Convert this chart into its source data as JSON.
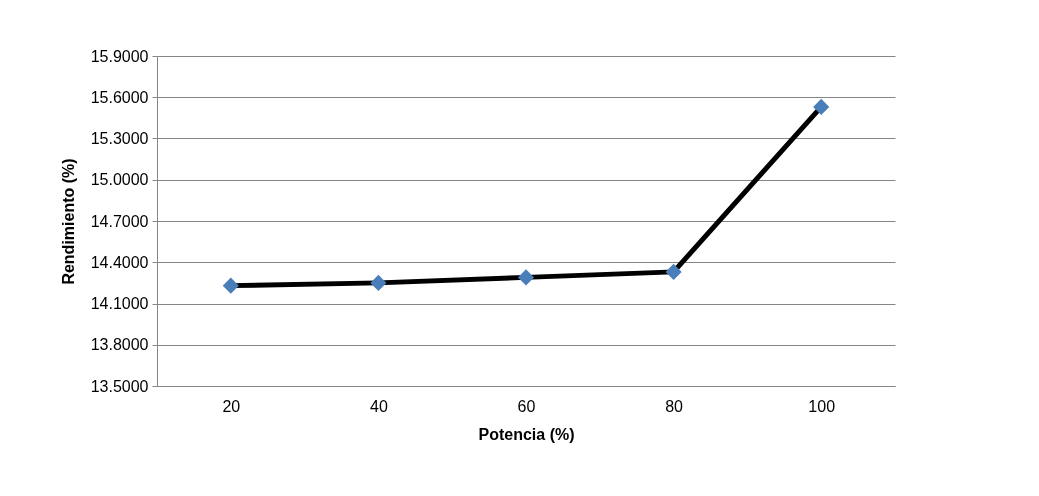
{
  "chart_data": {
    "type": "line",
    "xlabel": "Potencia (%)",
    "ylabel": "Rendimiento (%)",
    "categories": [
      "20",
      "40",
      "60",
      "80",
      "100"
    ],
    "series": [
      {
        "color": "#000000",
        "colors": [
          "#4a7ebb",
          "#4a7ebb",
          "#4a7ebb",
          "#4a7ebb",
          "#4a7ebb"
        ],
        "values": [
          14.23,
          14.25,
          14.29,
          14.33,
          15.53
        ]
      }
    ],
    "ylim": [
      13.5,
      15.9
    ],
    "yticks": [
      {
        "value": 13.5,
        "label": "13.5000"
      },
      {
        "value": 13.8,
        "label": "13.8000"
      },
      {
        "value": 14.1,
        "label": "14.1000"
      },
      {
        "value": 14.4,
        "label": "14.4000"
      },
      {
        "value": 14.7,
        "label": "14.7000"
      },
      {
        "value": 15.0,
        "label": "15.0000"
      },
      {
        "value": 15.3,
        "label": "15.3000"
      },
      {
        "value": 15.6,
        "label": "15.6000"
      },
      {
        "value": 15.9,
        "label": "15.9000"
      }
    ],
    "grid": "y",
    "marker": "diamond",
    "line_style": "solid"
  }
}
